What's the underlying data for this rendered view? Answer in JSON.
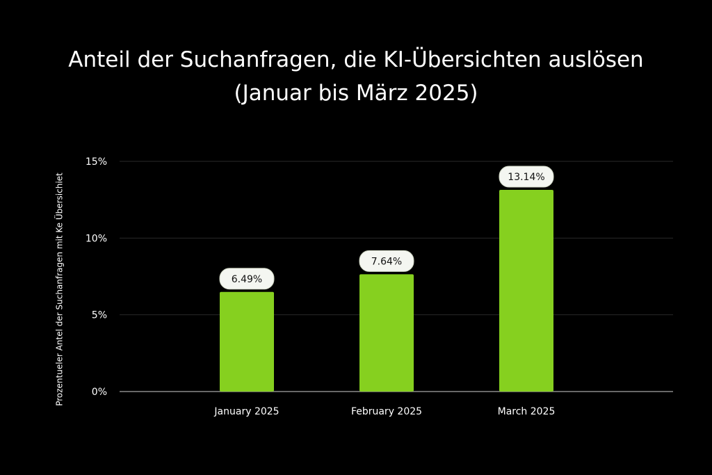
{
  "colors": {
    "background": "#000000",
    "bar": "#86d01f",
    "text": "#ffffff",
    "gridline": "#2a2a2a",
    "axis": "#8a8a8a",
    "label_bg": "#f4f6f1",
    "label_text": "#111111"
  },
  "chart_data": {
    "type": "bar",
    "title": "Anteil der Suchanfragen, die KI-Übersichten auslösen (Januar bis März 2025)",
    "xlabel": "",
    "ylabel": "Prozentueler Antel der Suchanfragen mit Ke Übersichiet",
    "categories": [
      "January 2025",
      "February 2025",
      "March 2025"
    ],
    "values": [
      6.49,
      7.64,
      13.14
    ],
    "data_labels": [
      "6.49%",
      "7.64%",
      "13.14%"
    ],
    "ylim": [
      0,
      15
    ],
    "yticks": [
      0,
      5,
      10,
      15
    ],
    "ytick_labels": [
      "0%",
      "5%",
      "10%",
      "15%"
    ],
    "grid": true,
    "legend": "none"
  }
}
